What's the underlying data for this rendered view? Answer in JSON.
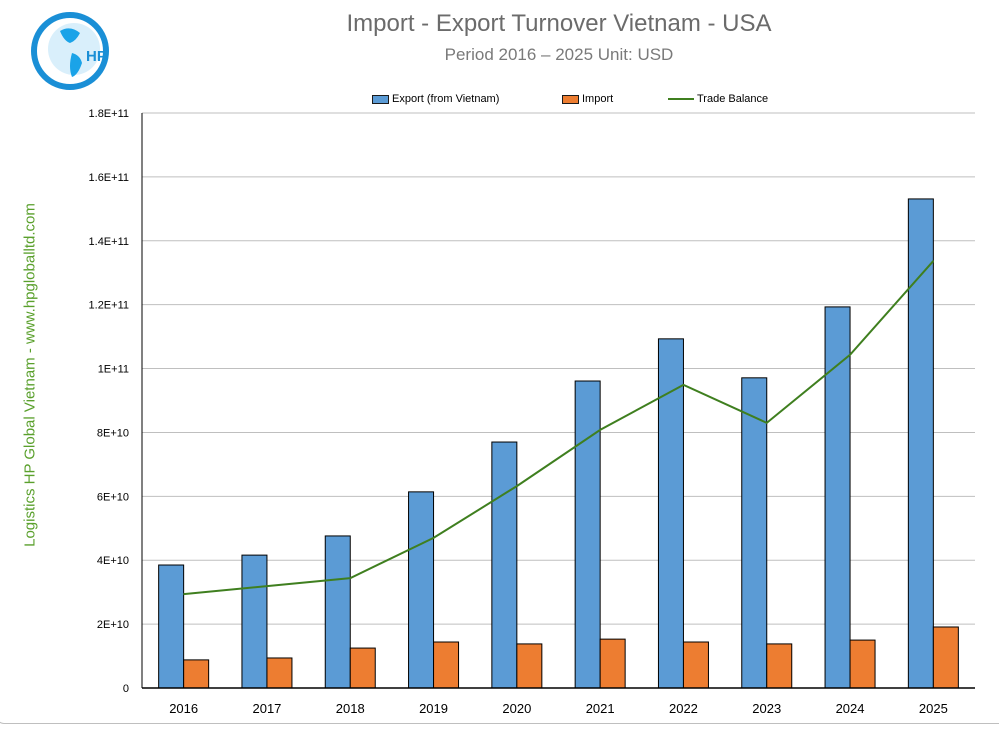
{
  "chart_data": {
    "type": "bar",
    "title": "Import - Export Turnover Vietnam - USA",
    "subtitle": "Period 2016 – 2025  Unit: USD",
    "side_label": "Logistics HP Global Vietnam - www.hpgloballtd.com",
    "logo_text": "HP",
    "categories": [
      "2016",
      "2017",
      "2018",
      "2019",
      "2020",
      "2021",
      "2022",
      "2023",
      "2024",
      "2025"
    ],
    "series": [
      {
        "name": "Export (from Vietnam)",
        "type": "bar",
        "color": "#5b9bd5",
        "values": [
          38500000000.0,
          41600000000.0,
          47600000000.0,
          61400000000.0,
          77000000000.0,
          96100000000.0,
          109300000000.0,
          97100000000.0,
          119300000000.0,
          153100000000.0
        ]
      },
      {
        "name": "Import",
        "type": "bar",
        "color": "#ed7d31",
        "values": [
          8800000000.0,
          9400000000.0,
          12500000000.0,
          14400000000.0,
          13800000000.0,
          15300000000.0,
          14400000000.0,
          13800000000.0,
          15000000000.0,
          19100000000.0
        ]
      },
      {
        "name": "Trade Balance",
        "type": "line",
        "color": "#3f7f1f",
        "values": [
          29400000000.0,
          31900000000.0,
          34400000000.0,
          47000000000.0,
          63200000000.0,
          80800000000.0,
          94900000000.0,
          83000000000.0,
          104300000000.0,
          133700000000.0
        ]
      }
    ],
    "ylim": [
      0,
      180000000000.0
    ],
    "yticks": [
      "0",
      "2E+10",
      "4E+10",
      "6E+10",
      "8E+10",
      "1E+11",
      "1.2E+11",
      "1.4E+11",
      "1.6E+11",
      "1.8E+11"
    ],
    "grid": true,
    "legend": "top"
  }
}
